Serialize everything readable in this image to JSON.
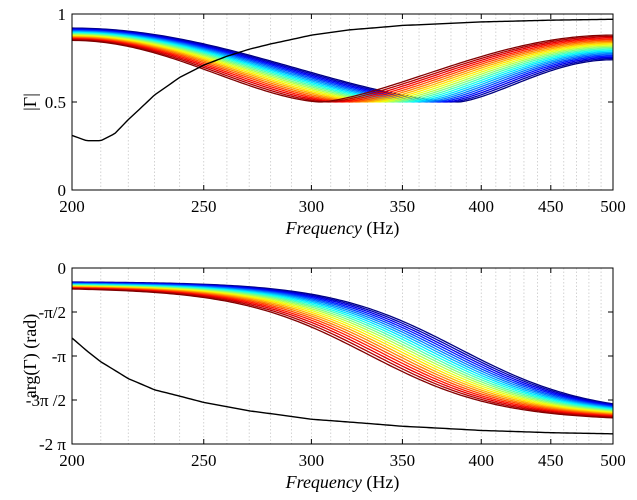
{
  "chart_data": [
    {
      "type": "line",
      "panel": "top",
      "xlabel": "Frequency (Hz)",
      "xlabel_italic_part": "Frequency",
      "xlabel_unit_part": " (Hz)",
      "ylabel": "|Γ|",
      "xlim": [
        200,
        500
      ],
      "ylim": [
        0,
        1
      ],
      "x_scale": "log",
      "x_ticks": [
        200,
        250,
        300,
        350,
        400,
        450,
        500
      ],
      "x_tick_labels": [
        "200",
        "250",
        "300",
        "350",
        "400",
        "450",
        "500"
      ],
      "y_ticks": [
        0,
        0.5,
        1
      ],
      "y_tick_labels": [
        "0",
        "0.5",
        "1"
      ],
      "grid": "vertical dotted at 10 Hz steps",
      "family": {
        "count": 21,
        "colormap": "jet (blue → red)",
        "start_value_range": [
          0.92,
          0.85
        ],
        "min_value": 0.5,
        "min_frequency_range_hz": [
          385,
          305
        ],
        "end_value_range": [
          0.74,
          0.88
        ]
      },
      "reference_series": {
        "name": "black curve",
        "color": "#000000",
        "points": [
          [
            200,
            0.31
          ],
          [
            205,
            0.28
          ],
          [
            210,
            0.28
          ],
          [
            215,
            0.32
          ],
          [
            220,
            0.4
          ],
          [
            230,
            0.54
          ],
          [
            240,
            0.64
          ],
          [
            250,
            0.71
          ],
          [
            260,
            0.76
          ],
          [
            270,
            0.8
          ],
          [
            280,
            0.83
          ],
          [
            300,
            0.88
          ],
          [
            320,
            0.91
          ],
          [
            350,
            0.935
          ],
          [
            400,
            0.955
          ],
          [
            450,
            0.965
          ],
          [
            500,
            0.97
          ]
        ]
      }
    },
    {
      "type": "line",
      "panel": "bottom",
      "xlabel": "Frequency (Hz)",
      "xlabel_italic_part": "Frequency",
      "xlabel_unit_part": " (Hz)",
      "ylabel": "arg(Γ) (rad)",
      "xlim": [
        200,
        500
      ],
      "ylim": [
        -6.2832,
        0
      ],
      "x_scale": "log",
      "x_ticks": [
        200,
        250,
        300,
        350,
        400,
        450,
        500
      ],
      "x_tick_labels": [
        "200",
        "250",
        "300",
        "350",
        "400",
        "450",
        "500"
      ],
      "y_ticks": [
        0,
        -1.5708,
        -3.1416,
        -4.7124,
        -6.2832
      ],
      "y_tick_labels": [
        "0",
        "-π/2",
        "-π",
        "-3π /2",
        "-2 π"
      ],
      "grid": "vertical dotted at 10 Hz steps",
      "family": {
        "count": 21,
        "colormap": "jet (blue → red)",
        "start_value_range": [
          -0.5,
          -0.75
        ],
        "center_phase": -3.1416,
        "center_frequency_range_hz": [
          385,
          330
        ],
        "end_value_range": [
          -4.85,
          -5.35
        ]
      },
      "reference_series": {
        "name": "black curve",
        "color": "#000000",
        "points": [
          [
            200,
            -2.5
          ],
          [
            205,
            -2.95
          ],
          [
            210,
            -3.35
          ],
          [
            220,
            -3.95
          ],
          [
            230,
            -4.35
          ],
          [
            250,
            -4.8
          ],
          [
            270,
            -5.1
          ],
          [
            300,
            -5.4
          ],
          [
            330,
            -5.55
          ],
          [
            350,
            -5.65
          ],
          [
            400,
            -5.8
          ],
          [
            450,
            -5.88
          ],
          [
            500,
            -5.92
          ]
        ]
      }
    }
  ]
}
